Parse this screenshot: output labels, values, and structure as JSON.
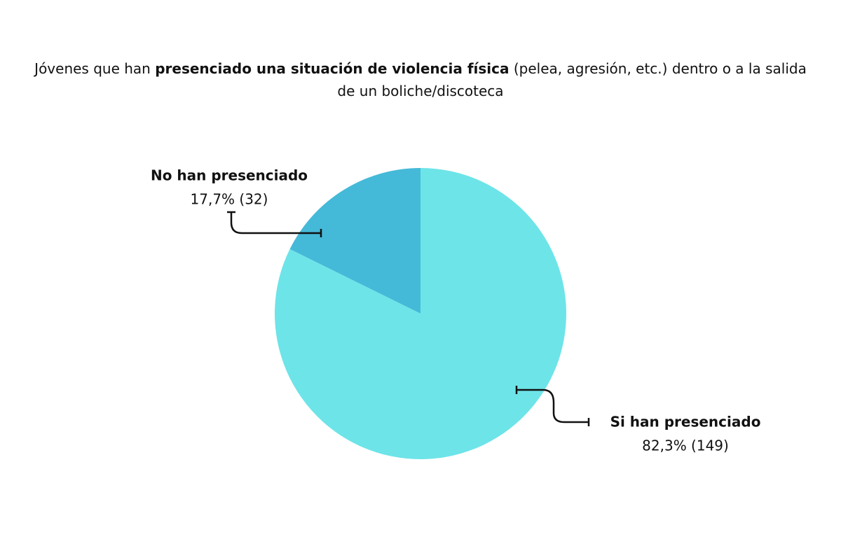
{
  "chart_data": {
    "type": "pie",
    "title": [
      "Jóvenes que han",
      "presenciado una situación de violencia física",
      "(pelea, agresión, etc.) dentro o a la salida de un boliche/discoteca"
    ],
    "categories": [
      "Si han presenciado",
      "No han presenciado"
    ],
    "values": [
      82.3,
      17.7
    ],
    "value_labels": [
      "82,3% (149)",
      "17,7% (32)"
    ],
    "colors": [
      "#6de4e8",
      "#45b9d8"
    ]
  }
}
